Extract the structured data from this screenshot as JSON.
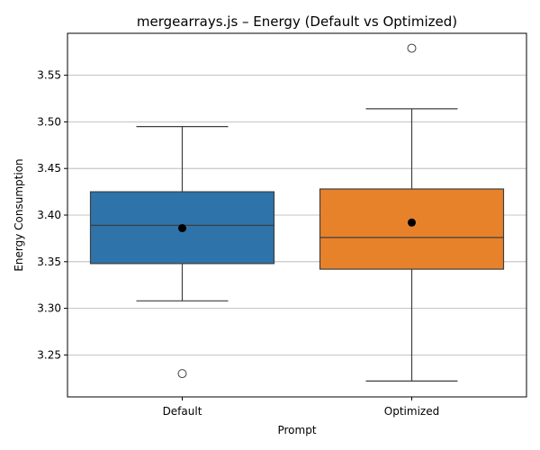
{
  "chart_data": {
    "type": "box",
    "title": "mergearrays.js – Energy (Default vs Optimized)",
    "xlabel": "Prompt",
    "ylabel": "Energy Consumption",
    "ylim": [
      3.205,
      3.595
    ],
    "yticks": [
      3.25,
      3.3,
      3.35,
      3.4,
      3.45,
      3.5,
      3.55
    ],
    "ytick_labels": [
      "3.25",
      "3.30",
      "3.35",
      "3.40",
      "3.45",
      "3.50",
      "3.55"
    ],
    "grid": "horizontal",
    "categories": [
      "Default",
      "Optimized"
    ],
    "boxes": [
      {
        "category": "Default",
        "color": "#2e73aa",
        "whisker_low": 3.308,
        "q1": 3.348,
        "median": 3.389,
        "q3": 3.425,
        "whisker_high": 3.495,
        "mean": 3.386,
        "outliers": [
          3.23
        ]
      },
      {
        "category": "Optimized",
        "color": "#e8822a",
        "whisker_low": 3.222,
        "q1": 3.342,
        "median": 3.376,
        "q3": 3.428,
        "whisker_high": 3.514,
        "mean": 3.392,
        "outliers": [
          3.579
        ]
      }
    ]
  }
}
